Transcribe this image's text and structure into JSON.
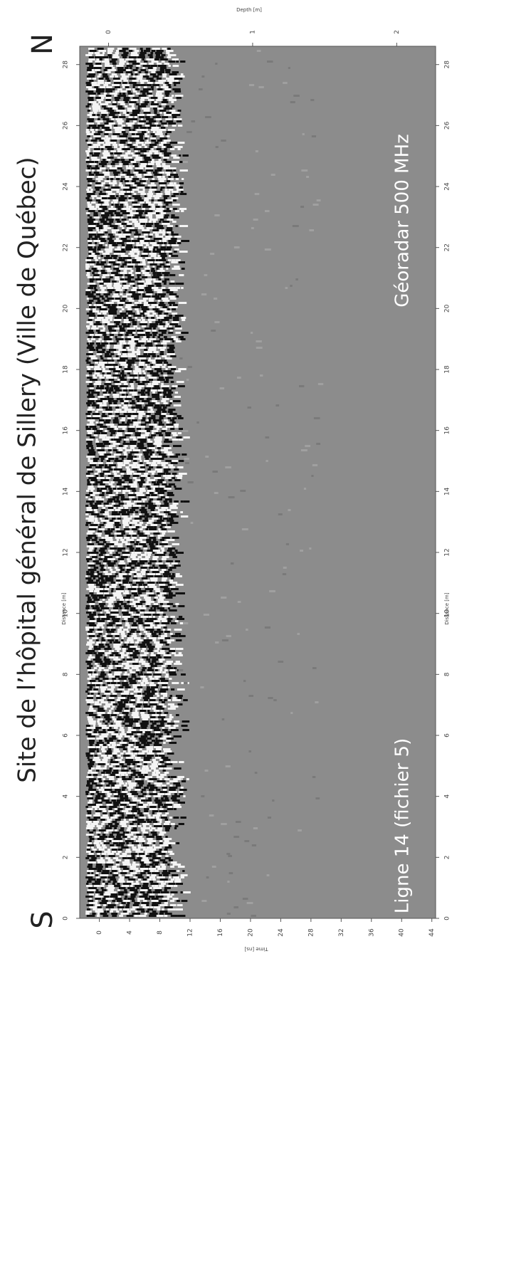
{
  "chart_data": {
    "type": "radargram",
    "title": "Site de l’hôpital général de Sillery (Ville de Québec)",
    "north_label": "N",
    "south_label": "S",
    "annotations": [
      "Géoradar 500 MHz",
      "Ligne 14 (fichier 5)"
    ],
    "x_label": "Distance [m]",
    "y_label": "Time [ns]",
    "y2_label": "Depth [m]",
    "xlim": [
      0,
      28.6
    ],
    "xticks": [
      0,
      2,
      4,
      6,
      8,
      10,
      12,
      14,
      16,
      18,
      20,
      22,
      24,
      26,
      28
    ],
    "ylim": [
      -2.6,
      44.5
    ],
    "yticks": [
      0,
      4,
      8,
      12,
      16,
      20,
      24,
      28,
      32,
      36,
      40,
      44
    ],
    "y2lim": [
      -0.2,
      2.27
    ],
    "y2ticks": [
      0,
      1,
      2
    ]
  }
}
